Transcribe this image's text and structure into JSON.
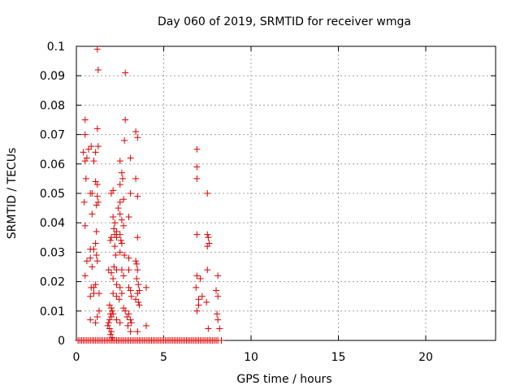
{
  "chart_data": {
    "type": "scatter",
    "title": "Day 060 of 2019, SRMTID for receiver wmga",
    "xlabel": "GPS time / hours",
    "ylabel": "SRMTID / TECUs",
    "xlim": [
      0,
      24
    ],
    "ylim": [
      0,
      0.1
    ],
    "x_ticks": [
      0,
      5,
      10,
      15,
      20
    ],
    "y_ticks": [
      0,
      0.01,
      0.02,
      0.03,
      0.04,
      0.05,
      0.06,
      0.07,
      0.08,
      0.09,
      0.1
    ],
    "grid": true,
    "marker": "+",
    "marker_color": "#dd0000",
    "series": [
      {
        "name": "SRMTID",
        "points": [
          [
            1.2,
            0.099
          ],
          [
            1.25,
            0.092
          ],
          [
            2.8,
            0.091
          ],
          [
            0.5,
            0.075
          ],
          [
            2.8,
            0.075
          ],
          [
            0.5,
            0.07
          ],
          [
            1.2,
            0.072
          ],
          [
            3.4,
            0.071
          ],
          [
            3.5,
            0.069
          ],
          [
            2.75,
            0.068
          ],
          [
            0.4,
            0.064
          ],
          [
            0.6,
            0.062
          ],
          [
            0.85,
            0.066
          ],
          [
            1.1,
            0.064
          ],
          [
            1.25,
            0.066
          ],
          [
            1.0,
            0.061
          ],
          [
            0.5,
            0.061
          ],
          [
            0.7,
            0.065
          ],
          [
            2.5,
            0.061
          ],
          [
            3.1,
            0.062
          ],
          [
            6.9,
            0.065
          ],
          [
            6.9,
            0.059
          ],
          [
            6.9,
            0.055
          ],
          [
            0.55,
            0.055
          ],
          [
            1.1,
            0.054
          ],
          [
            1.2,
            0.053
          ],
          [
            0.8,
            0.05
          ],
          [
            0.9,
            0.05
          ],
          [
            1.2,
            0.049
          ],
          [
            1.25,
            0.047
          ],
          [
            1.15,
            0.046
          ],
          [
            2.0,
            0.05
          ],
          [
            2.1,
            0.051
          ],
          [
            2.5,
            0.053
          ],
          [
            2.65,
            0.055
          ],
          [
            2.6,
            0.057
          ],
          [
            2.5,
            0.047
          ],
          [
            2.7,
            0.048
          ],
          [
            3.1,
            0.05
          ],
          [
            3.4,
            0.055
          ],
          [
            3.5,
            0.049
          ],
          [
            7.5,
            0.05
          ],
          [
            0.45,
            0.047
          ],
          [
            0.5,
            0.039
          ],
          [
            0.9,
            0.043
          ],
          [
            1.15,
            0.037
          ],
          [
            2.1,
            0.042
          ],
          [
            2.2,
            0.04
          ],
          [
            2.4,
            0.045
          ],
          [
            2.5,
            0.043
          ],
          [
            2.6,
            0.041
          ],
          [
            2.7,
            0.039
          ],
          [
            3.0,
            0.042
          ],
          [
            2.15,
            0.038
          ],
          [
            2.3,
            0.037
          ],
          [
            2.2,
            0.036
          ],
          [
            2.3,
            0.035
          ],
          [
            2.5,
            0.036
          ],
          [
            2.55,
            0.034
          ],
          [
            2.6,
            0.033
          ],
          [
            3.5,
            0.035
          ],
          [
            1.1,
            0.033
          ],
          [
            1.0,
            0.031
          ],
          [
            0.8,
            0.031
          ],
          [
            1.15,
            0.029
          ],
          [
            1.2,
            0.027
          ],
          [
            0.6,
            0.027
          ],
          [
            0.8,
            0.028
          ],
          [
            0.9,
            0.025
          ],
          [
            6.9,
            0.036
          ],
          [
            7.5,
            0.036
          ],
          [
            7.55,
            0.035
          ],
          [
            7.6,
            0.033
          ],
          [
            7.5,
            0.032
          ],
          [
            1.95,
            0.034
          ],
          [
            2.0,
            0.035
          ],
          [
            2.2,
            0.032
          ],
          [
            2.25,
            0.029
          ],
          [
            2.5,
            0.03
          ],
          [
            2.75,
            0.029
          ],
          [
            3.0,
            0.028
          ],
          [
            3.4,
            0.027
          ],
          [
            3.45,
            0.026
          ],
          [
            3.5,
            0.024
          ],
          [
            3.45,
            0.021
          ],
          [
            3.55,
            0.019
          ],
          [
            1.85,
            0.024
          ],
          [
            2.0,
            0.023
          ],
          [
            2.1,
            0.021
          ],
          [
            2.15,
            0.025
          ],
          [
            2.3,
            0.024
          ],
          [
            2.6,
            0.024
          ],
          [
            2.7,
            0.022
          ],
          [
            3.0,
            0.024
          ],
          [
            7.5,
            0.024
          ],
          [
            6.9,
            0.022
          ],
          [
            7.1,
            0.021
          ],
          [
            8.1,
            0.022
          ],
          [
            0.5,
            0.022
          ],
          [
            0.85,
            0.018
          ],
          [
            1.0,
            0.018
          ],
          [
            1.1,
            0.019
          ],
          [
            1.0,
            0.016
          ],
          [
            1.3,
            0.016
          ],
          [
            0.8,
            0.015
          ],
          [
            2.3,
            0.019
          ],
          [
            2.5,
            0.018
          ],
          [
            2.6,
            0.016
          ],
          [
            2.1,
            0.016
          ],
          [
            2.3,
            0.015
          ],
          [
            2.45,
            0.014
          ],
          [
            3.0,
            0.018
          ],
          [
            3.1,
            0.017
          ],
          [
            3.15,
            0.015
          ],
          [
            3.5,
            0.016
          ],
          [
            3.4,
            0.014
          ],
          [
            3.55,
            0.013
          ],
          [
            3.6,
            0.012
          ],
          [
            3.6,
            0.017
          ],
          [
            4.0,
            0.018
          ],
          [
            6.85,
            0.018
          ],
          [
            7.0,
            0.014
          ],
          [
            7.2,
            0.015
          ],
          [
            7.45,
            0.013
          ],
          [
            8.0,
            0.017
          ],
          [
            8.1,
            0.015
          ],
          [
            7.0,
            0.012
          ],
          [
            6.9,
            0.01
          ],
          [
            1.9,
            0.012
          ],
          [
            2.0,
            0.011
          ],
          [
            2.05,
            0.01
          ],
          [
            1.95,
            0.009
          ],
          [
            2.0,
            0.008
          ],
          [
            1.9,
            0.007
          ],
          [
            1.85,
            0.006
          ],
          [
            2.1,
            0.009
          ],
          [
            1.8,
            0.005
          ],
          [
            1.9,
            0.004
          ],
          [
            2.0,
            0.003
          ],
          [
            1.95,
            0.002
          ],
          [
            2.05,
            0.001
          ],
          [
            2.7,
            0.011
          ],
          [
            2.8,
            0.01
          ],
          [
            3.0,
            0.009
          ],
          [
            2.9,
            0.008
          ],
          [
            3.1,
            0.007
          ],
          [
            3.15,
            0.006
          ],
          [
            2.95,
            0.005
          ],
          [
            3.1,
            0.003
          ],
          [
            2.3,
            0.007
          ],
          [
            2.5,
            0.006
          ],
          [
            0.8,
            0.007
          ],
          [
            1.2,
            0.008
          ],
          [
            1.3,
            0.01
          ],
          [
            1.1,
            0.006
          ],
          [
            4.0,
            0.005
          ],
          [
            3.5,
            0.003
          ],
          [
            8.1,
            0.007
          ],
          [
            8.2,
            0.004
          ],
          [
            7.55,
            0.004
          ],
          [
            8.05,
            0.009
          ],
          [
            0.1,
            0.0
          ],
          [
            0.2,
            0.0
          ],
          [
            0.3,
            0.0
          ],
          [
            0.4,
            0.0
          ],
          [
            0.5,
            0.0
          ],
          [
            0.6,
            0.0
          ],
          [
            0.7,
            0.0
          ],
          [
            0.8,
            0.0
          ],
          [
            0.9,
            0.0
          ],
          [
            1.0,
            0.0
          ],
          [
            1.1,
            0.0
          ],
          [
            1.2,
            0.0
          ],
          [
            1.3,
            0.0
          ],
          [
            1.4,
            0.0
          ],
          [
            1.5,
            0.0
          ],
          [
            1.6,
            0.0
          ],
          [
            1.7,
            0.0
          ],
          [
            1.8,
            0.0
          ],
          [
            1.9,
            0.0
          ],
          [
            2.0,
            0.0
          ],
          [
            2.1,
            0.0
          ],
          [
            2.2,
            0.0
          ],
          [
            2.3,
            0.0
          ],
          [
            2.4,
            0.0
          ],
          [
            2.5,
            0.0
          ],
          [
            2.6,
            0.0
          ],
          [
            2.7,
            0.0
          ],
          [
            2.8,
            0.0
          ],
          [
            2.9,
            0.0
          ],
          [
            3.0,
            0.0
          ],
          [
            3.1,
            0.0
          ],
          [
            3.2,
            0.0
          ],
          [
            3.3,
            0.0
          ],
          [
            3.4,
            0.0
          ],
          [
            3.5,
            0.0
          ],
          [
            3.6,
            0.0
          ],
          [
            3.7,
            0.0
          ],
          [
            3.8,
            0.0
          ],
          [
            3.9,
            0.0
          ],
          [
            4.0,
            0.0
          ],
          [
            4.1,
            0.0
          ],
          [
            4.2,
            0.0
          ],
          [
            4.3,
            0.0
          ],
          [
            4.4,
            0.0
          ],
          [
            4.5,
            0.0
          ],
          [
            4.6,
            0.0
          ],
          [
            4.7,
            0.0
          ],
          [
            4.8,
            0.0
          ],
          [
            4.9,
            0.0
          ],
          [
            5.0,
            0.0
          ],
          [
            5.1,
            0.0
          ],
          [
            5.2,
            0.0
          ],
          [
            5.3,
            0.0
          ],
          [
            5.4,
            0.0
          ],
          [
            5.5,
            0.0
          ],
          [
            5.6,
            0.0
          ],
          [
            5.7,
            0.0
          ],
          [
            5.8,
            0.0
          ],
          [
            5.9,
            0.0
          ],
          [
            6.0,
            0.0
          ],
          [
            6.1,
            0.0
          ],
          [
            6.2,
            0.0
          ],
          [
            6.3,
            0.0
          ],
          [
            6.4,
            0.0
          ],
          [
            6.5,
            0.0
          ],
          [
            6.6,
            0.0
          ],
          [
            6.7,
            0.0
          ],
          [
            6.8,
            0.0
          ],
          [
            6.9,
            0.0
          ],
          [
            7.0,
            0.0
          ],
          [
            7.1,
            0.0
          ],
          [
            7.2,
            0.0
          ],
          [
            7.3,
            0.0
          ],
          [
            7.4,
            0.0
          ],
          [
            7.5,
            0.0
          ],
          [
            7.6,
            0.0
          ],
          [
            7.7,
            0.0
          ],
          [
            7.8,
            0.0
          ],
          [
            7.9,
            0.0
          ],
          [
            8.0,
            0.0
          ],
          [
            8.1,
            0.0
          ],
          [
            8.3,
            0.0
          ]
        ]
      }
    ]
  }
}
